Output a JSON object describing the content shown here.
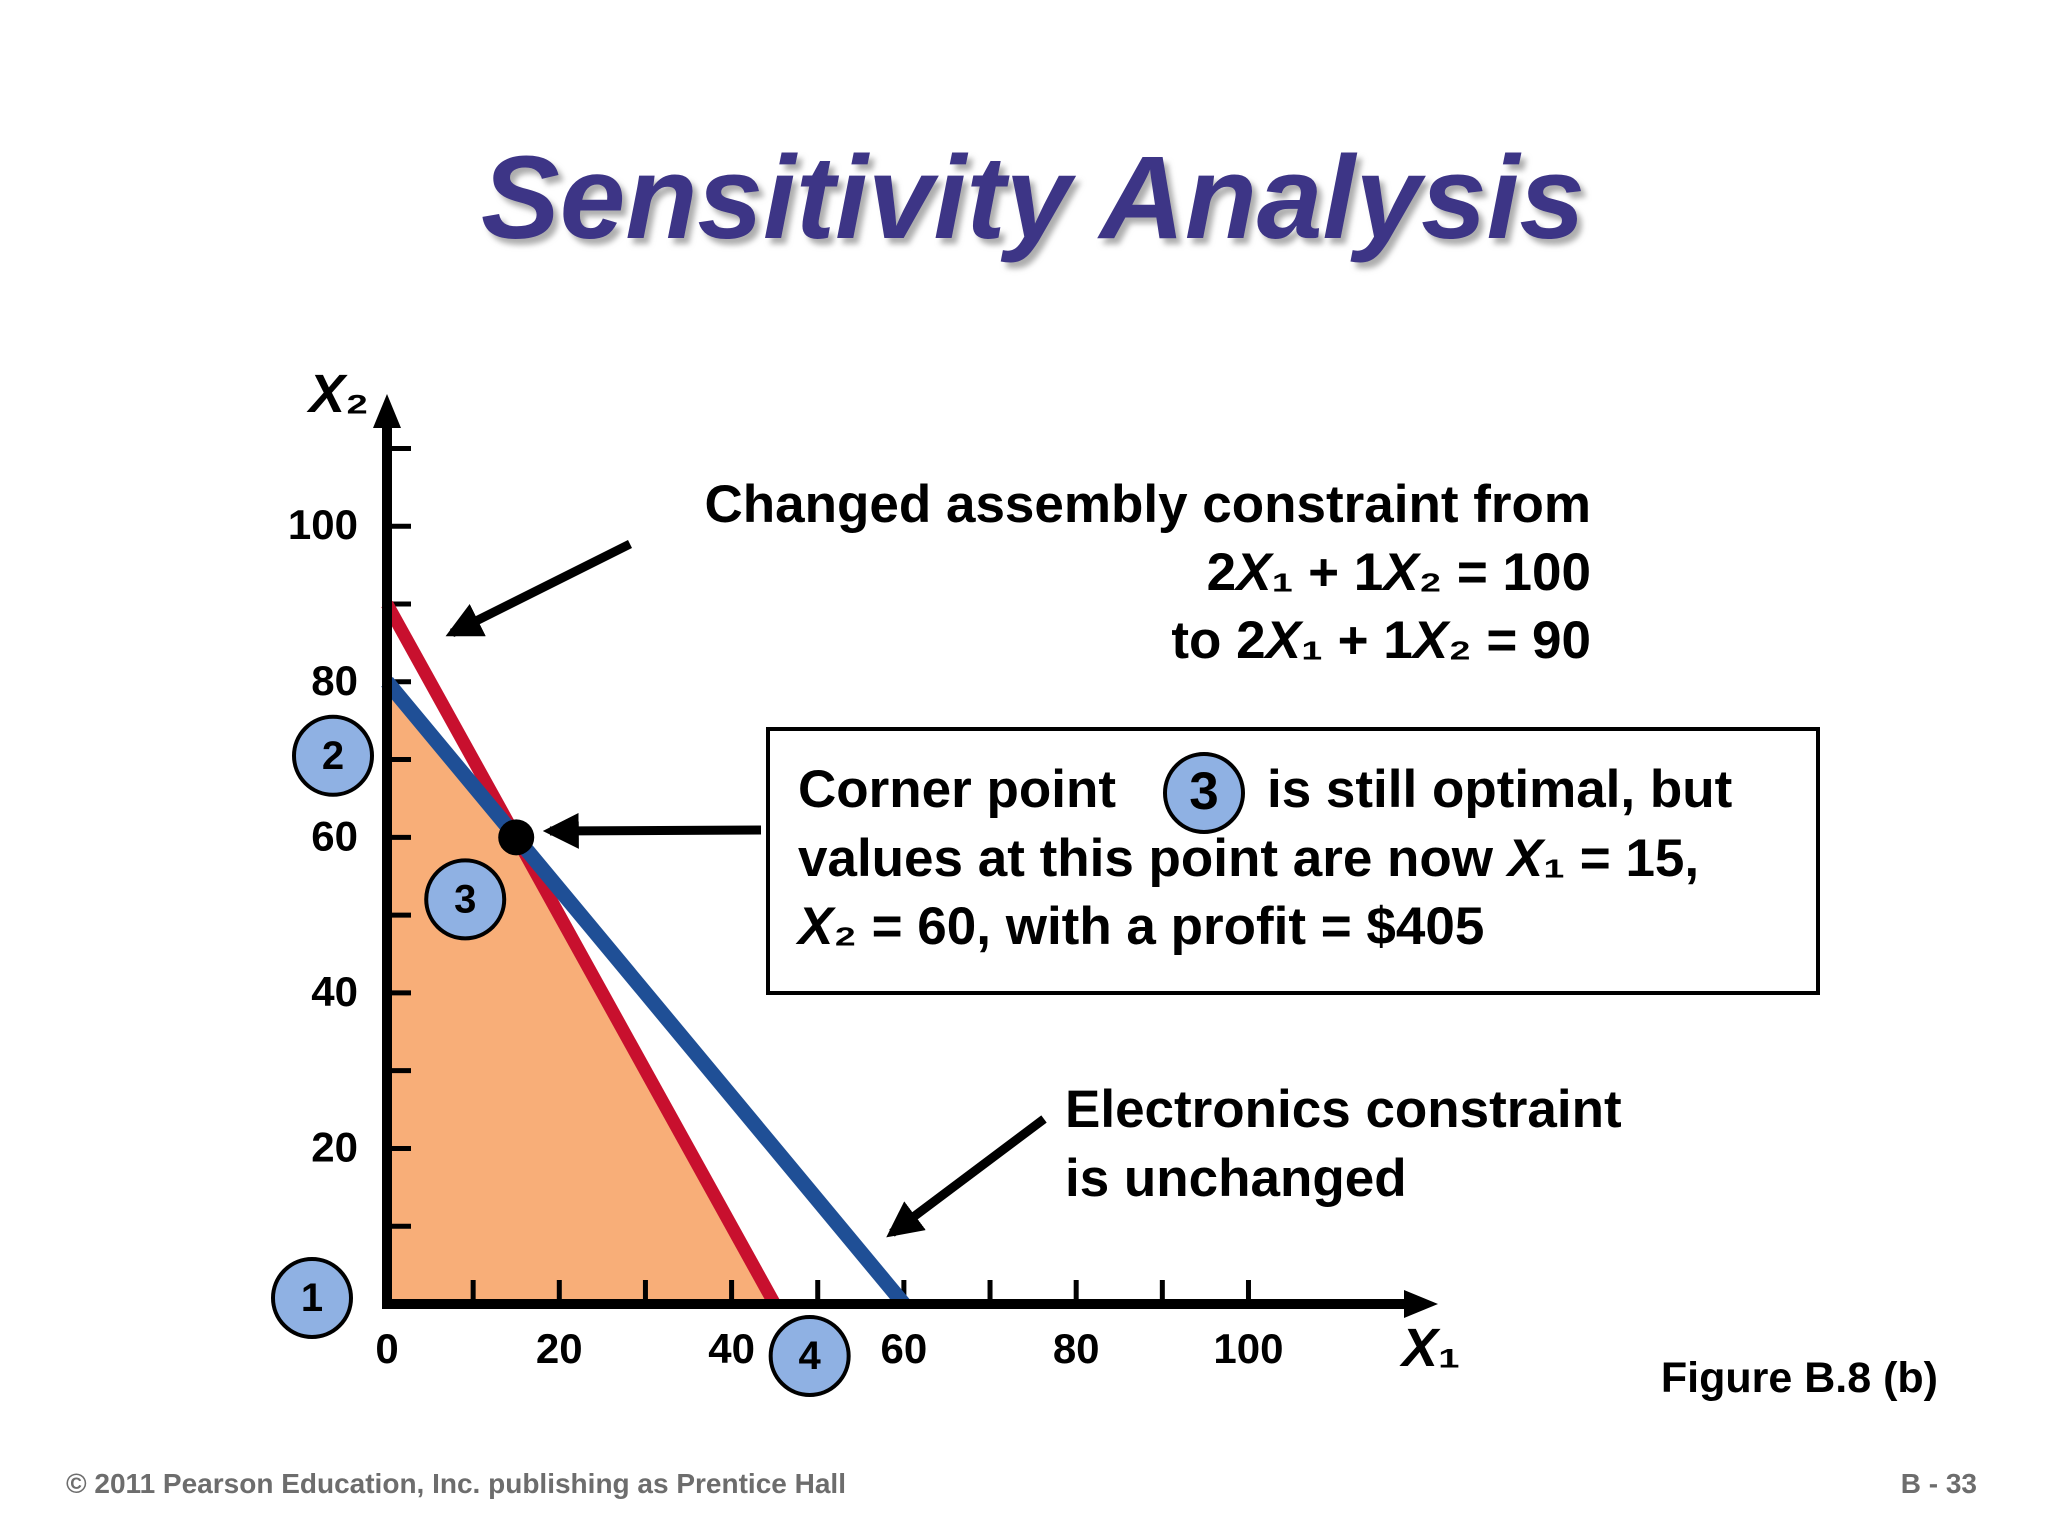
{
  "title": "Sensitivity Analysis",
  "chart_data": {
    "type": "line",
    "x_label": "X₁",
    "y_label": "X₂",
    "xlim": [
      0,
      122
    ],
    "ylim": [
      0,
      117
    ],
    "xticks": [
      0,
      20,
      40,
      60,
      80,
      100
    ],
    "yticks": [
      20,
      40,
      60,
      80,
      100
    ],
    "xminorticks": [
      10,
      30,
      50,
      70,
      90
    ],
    "yminorticks": [
      10,
      30,
      50,
      70,
      90,
      110
    ],
    "feasible_region": {
      "x": [
        0,
        0,
        15,
        45
      ],
      "y": [
        0,
        80,
        60,
        0
      ],
      "labels": [
        "1",
        "2",
        "3",
        "4"
      ],
      "color": "#f8ae78",
      "label_color": "#8fb1e3"
    },
    "series": [
      {
        "color": "#c8102e",
        "x": [
          0,
          45
        ],
        "y": [
          90,
          0
        ]
      },
      {
        "color": "#1f4f96",
        "x": [
          0,
          60
        ],
        "y": [
          80,
          0
        ]
      }
    ],
    "optimal_point": {
      "x": 15,
      "y": 60,
      "color": "#000000"
    },
    "annotations": [
      {
        "lines": [
          "Changed assembly constraint from",
          "2X₁ + 1X₂ = 100",
          "to 2X₁ + 1X₂ = 90"
        ]
      },
      {
        "lead": "Corner point",
        "lines": [
          "is still optimal, but",
          "values at this point are now X₁ = 15,",
          "X₂ = 60, with a profit = $405"
        ]
      },
      {
        "lines": [
          "Electronics constraint",
          "is unchanged"
        ]
      }
    ]
  },
  "figure_label": "Figure B.8 (b)",
  "footer": {
    "copyright": "© 2011 Pearson Education, Inc. publishing as Prentice Hall",
    "page": "B - 33"
  }
}
